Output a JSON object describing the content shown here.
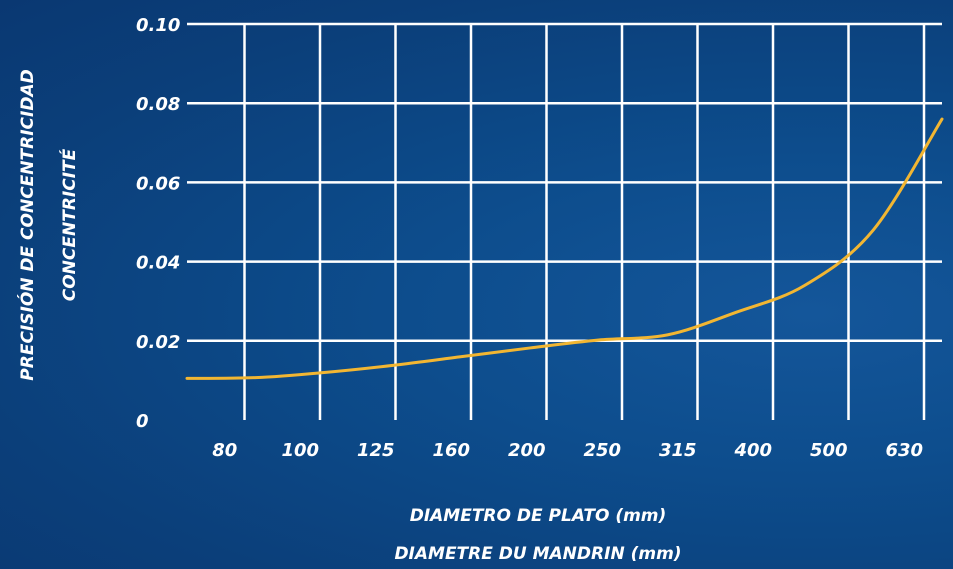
{
  "colors": {
    "background": "#0b4482",
    "grid": "#ffffff",
    "line": "#f2b632",
    "text": "#ffffff"
  },
  "chart_data": {
    "type": "line",
    "title": "",
    "xlabel": [
      "DIAMETRO DE PLATO (mm)",
      "DIAMETRE DU MANDRIN (mm)"
    ],
    "ylabel": [
      "PRECISIÓN DE CONCENTRICIDAD",
      "CONCENTRICITÉ"
    ],
    "x_tick_labels": [
      "80",
      "100",
      "125",
      "160",
      "200",
      "250",
      "315",
      "400",
      "500",
      "630"
    ],
    "y_tick_labels": [
      "0",
      "0.02",
      "0.04",
      "0.06",
      "0.08",
      "0.10"
    ],
    "y_ticks": [
      0,
      0.02,
      0.04,
      0.06,
      0.08,
      0.1
    ],
    "ylim": [
      0,
      0.1
    ],
    "grid": true,
    "legend": "none",
    "series": [
      {
        "x": [
          "",
          "80",
          "100",
          "125",
          "160",
          "200",
          "250",
          "315",
          "400",
          "500",
          "630",
          ""
        ],
        "values": [
          0.0105,
          0.0107,
          0.012,
          0.0138,
          0.016,
          0.0182,
          0.0202,
          0.0215,
          0.0272,
          0.034,
          0.048,
          0.076
        ]
      }
    ]
  }
}
